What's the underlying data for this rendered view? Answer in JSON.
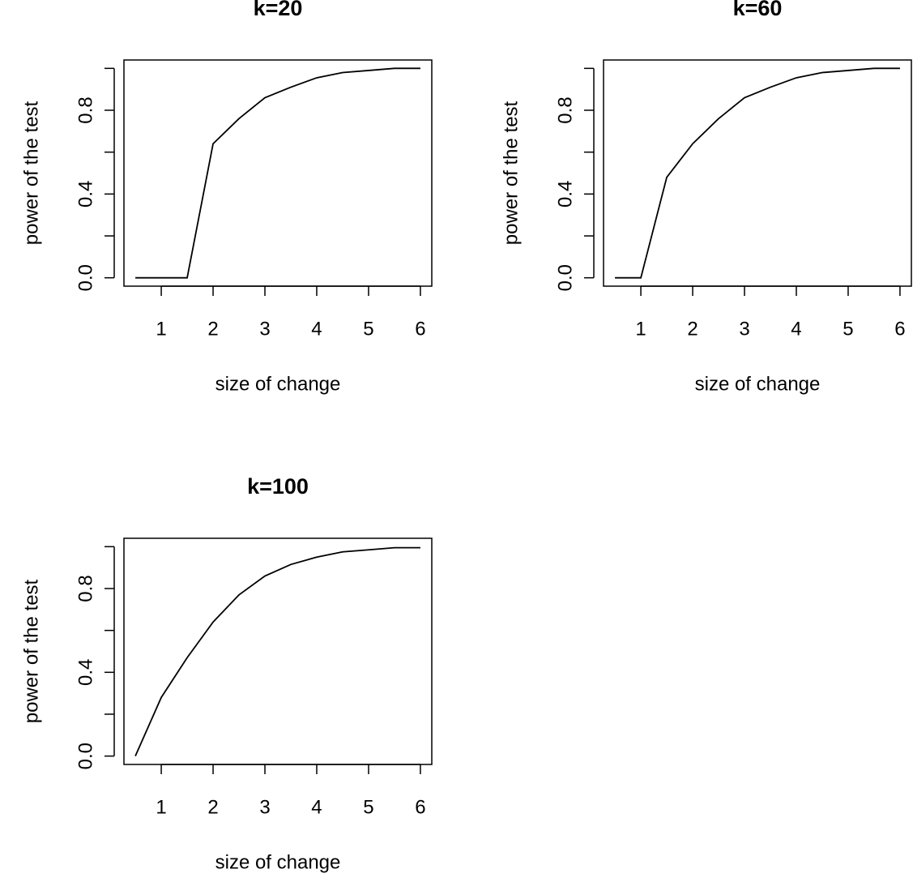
{
  "chart_data": [
    {
      "type": "line",
      "title": "k=20",
      "x_label": "size of change",
      "y_label": "power of the test",
      "x": [
        0.5,
        1,
        1.5,
        2,
        2.5,
        3,
        3.5,
        4,
        4.5,
        5,
        5.5,
        6
      ],
      "values": [
        0,
        0,
        0,
        0.64,
        0.76,
        0.86,
        0.91,
        0.955,
        0.98,
        0.99,
        1.0,
        1.0
      ],
      "color": "#000000",
      "xlim": [
        0.28,
        6.22
      ],
      "ylim": [
        -0.04,
        1.04
      ],
      "xticks": [
        1,
        2,
        3,
        4,
        5,
        6
      ],
      "yticks": [
        {
          "value": 0,
          "label": "0.0"
        },
        0.4,
        0.8
      ],
      "yminorticks": [
        0.2,
        0.6,
        1.0
      ]
    },
    {
      "type": "line",
      "title": "k=60",
      "x_label": "size of change",
      "y_label": "power of the test",
      "x": [
        0.5,
        1,
        1.5,
        2,
        2.5,
        3,
        3.5,
        4,
        4.5,
        5,
        5.5,
        6
      ],
      "values": [
        0,
        0,
        0.48,
        0.64,
        0.76,
        0.86,
        0.91,
        0.955,
        0.98,
        0.99,
        1.0,
        1.0
      ],
      "color": "#000000",
      "xlim": [
        0.28,
        6.22
      ],
      "ylim": [
        -0.04,
        1.04
      ],
      "xticks": [
        1,
        2,
        3,
        4,
        5,
        6
      ],
      "yticks": [
        {
          "value": 0,
          "label": "0.0"
        },
        0.4,
        0.8
      ],
      "yminorticks": [
        0.2,
        0.6,
        1.0
      ]
    },
    {
      "type": "line",
      "title": "k=100",
      "x_label": "size of change",
      "y_label": "power of the test",
      "x": [
        0.5,
        1,
        1.5,
        2,
        2.5,
        3,
        3.5,
        4,
        4.5,
        5,
        5.5,
        6
      ],
      "values": [
        0,
        0.28,
        0.47,
        0.64,
        0.77,
        0.86,
        0.915,
        0.95,
        0.975,
        0.985,
        0.995,
        0.995
      ],
      "color": "#000000",
      "xlim": [
        0.28,
        6.22
      ],
      "ylim": [
        -0.04,
        1.04
      ],
      "xticks": [
        1,
        2,
        3,
        4,
        5,
        6
      ],
      "yticks": [
        {
          "value": 0,
          "label": "0.0"
        },
        0.4,
        0.8
      ],
      "yminorticks": [
        0.2,
        0.6,
        1.0
      ]
    }
  ]
}
